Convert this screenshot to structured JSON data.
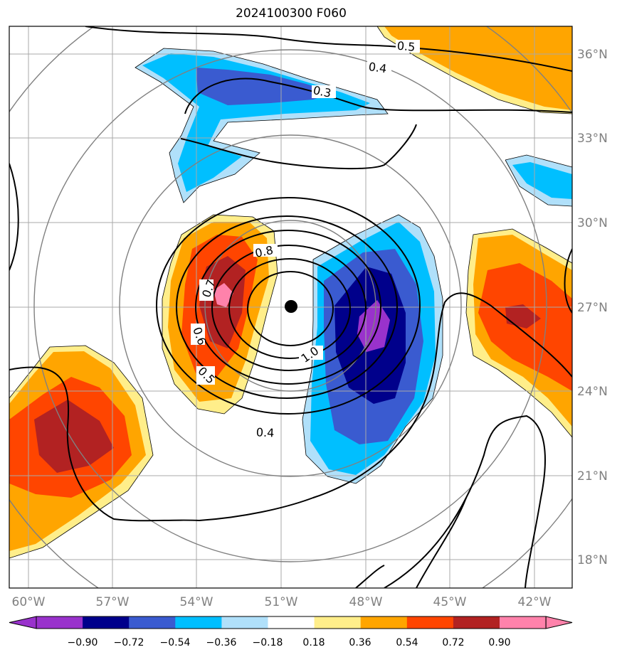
{
  "title": "2024100300 F060",
  "map": {
    "lon_labels": [
      "60°W",
      "57°W",
      "54°W",
      "51°W",
      "48°W",
      "45°W",
      "42°W"
    ],
    "lat_labels": [
      "36°N",
      "33°N",
      "30°N",
      "27°N",
      "24°N",
      "21°N",
      "18°N"
    ],
    "storm_center": {
      "lon": -50.6,
      "lat": 27.0
    },
    "contour_labels": [
      "0.5",
      "0.4",
      "0.3",
      "0.8",
      "0.7",
      "0.6",
      "0.5",
      "1.0",
      "0.4"
    ]
  },
  "colorbar": {
    "tick_labels": [
      "−0.90",
      "−0.72",
      "−0.54",
      "−0.36",
      "−0.18",
      "0.18",
      "0.36",
      "0.54",
      "0.72",
      "0.90"
    ],
    "colors": [
      "#9932cc",
      "#00008b",
      "#3a5bd0",
      "#00bfff",
      "#b0e0fa",
      "#ffffff",
      "#ffee8a",
      "#ffa500",
      "#ff4500",
      "#b22222",
      "#ff82ab"
    ]
  }
}
